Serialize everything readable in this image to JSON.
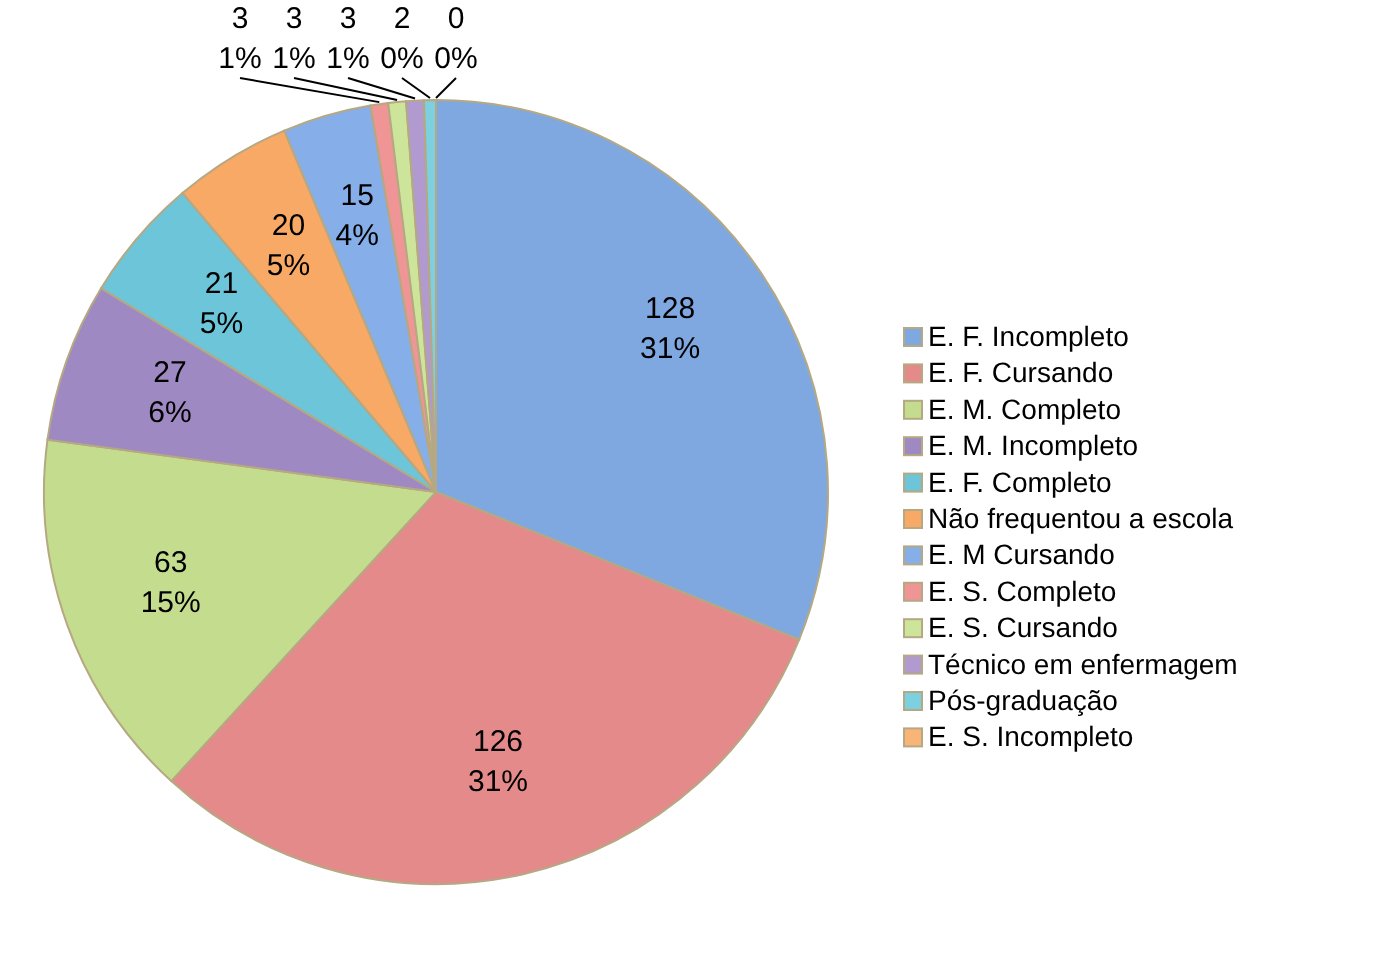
{
  "chart_data": {
    "type": "pie",
    "categories": [
      "E. F. Incompleto",
      "E. F. Cursando",
      "E. M. Completo",
      "E. M. Incompleto",
      "E. F. Completo",
      "Não frequentou a escola",
      "E. M Cursando",
      "E. S. Completo",
      "E. S. Cursando",
      "Técnico em enfermagem",
      "Pós-graduação",
      "E. S. Incompleto"
    ],
    "values": [
      128,
      126,
      63,
      27,
      21,
      20,
      15,
      3,
      3,
      3,
      2,
      0
    ],
    "value_labels": [
      "128\n31%",
      "126\n31%",
      "63\n15%",
      "27\n6%",
      "21\n5%",
      "20\n5%",
      "15\n4%",
      "3\n1%",
      "3\n1%",
      "3\n1%",
      "2\n0%",
      "0\n0%"
    ],
    "colors": [
      "#7fa8e0",
      "#e58a8a",
      "#c4dc8e",
      "#9f89c2",
      "#6cc5d9",
      "#f8a965",
      "#86aee8",
      "#ef9595",
      "#cde59a",
      "#b09ad0",
      "#7dd0e0",
      "#f9b578"
    ],
    "legend": "right"
  }
}
